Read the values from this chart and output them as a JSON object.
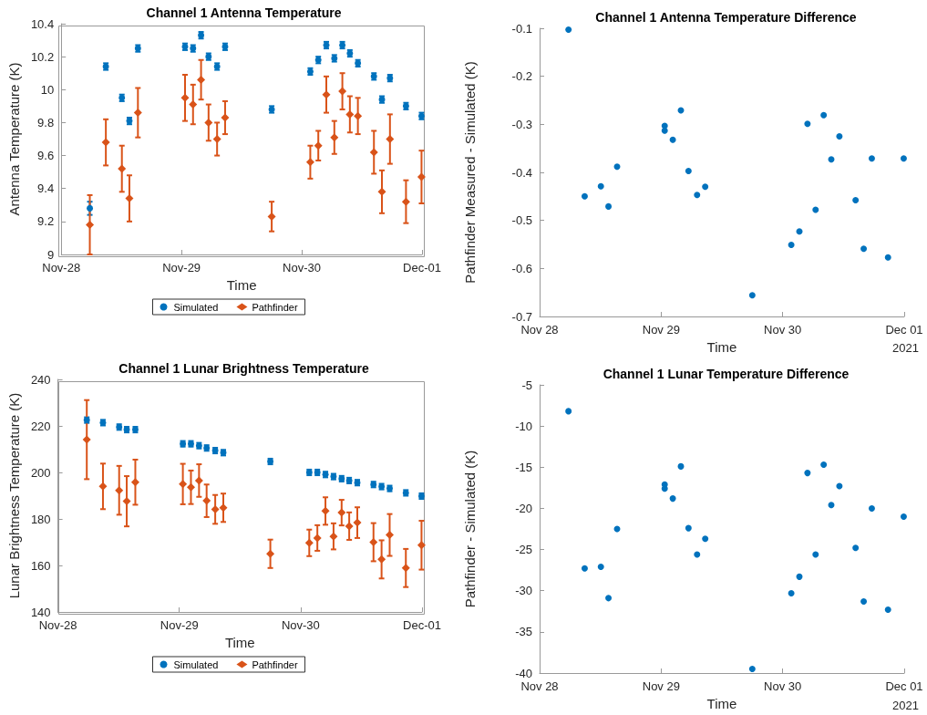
{
  "chart_data": [
    {
      "type": "scatter",
      "title": "Channel 1 Antenna Temperature",
      "xlabel": "Time",
      "ylabel": "Antenna Temperature (K)",
      "xlim": [
        "2021-11-28",
        "2021-12-01"
      ],
      "xticks": [
        {
          "value": "2021-11-28",
          "label": "Nov-28"
        },
        {
          "value": "2021-11-29",
          "label": "Nov-29"
        },
        {
          "value": "2021-11-30",
          "label": "Nov-30"
        },
        {
          "value": "2021-12-01",
          "label": "Dec-01"
        }
      ],
      "ylim": [
        9,
        10.4
      ],
      "yticks": [
        9,
        9.2,
        9.4,
        9.6,
        9.8,
        10,
        10.2,
        10.4
      ],
      "grid": false,
      "legend": "bottom",
      "x": [
        "2021-11-28T05:42",
        "2021-11-28T08:54",
        "2021-11-28T12:06",
        "2021-11-28T13:36",
        "2021-11-28T15:18",
        "2021-11-29T00:42",
        "2021-11-29T02:18",
        "2021-11-29T03:54",
        "2021-11-29T05:24",
        "2021-11-29T07:06",
        "2021-11-29T08:42",
        "2021-11-29T18:00",
        "2021-11-30T01:42",
        "2021-11-30T03:18",
        "2021-11-30T04:54",
        "2021-11-30T06:30",
        "2021-11-30T08:06",
        "2021-11-30T09:36",
        "2021-11-30T11:12",
        "2021-11-30T14:24",
        "2021-11-30T16:00",
        "2021-11-30T17:36",
        "2021-11-30T20:48",
        "2021-11-30T23:54"
      ],
      "series": [
        {
          "name": "Simulated",
          "color": "#0072bd",
          "marker": "circle",
          "values": [
            9.28,
            10.14,
            9.95,
            9.81,
            10.25,
            10.26,
            10.25,
            10.33,
            10.2,
            10.14,
            10.26,
            9.88,
            10.11,
            10.18,
            10.27,
            10.19,
            10.27,
            10.22,
            10.16,
            10.08,
            9.94,
            10.07,
            9.9,
            9.84
          ],
          "errors": [
            0.04,
            0.02,
            0.02,
            0.02,
            0.02,
            0.02,
            0.02,
            0.02,
            0.02,
            0.02,
            0.02,
            0.02,
            0.02,
            0.02,
            0.02,
            0.02,
            0.02,
            0.02,
            0.02,
            0.02,
            0.02,
            0.02,
            0.02,
            0.02
          ]
        },
        {
          "name": "Pathfinder",
          "color": "#d95319",
          "marker": "diamond",
          "values": [
            9.18,
            9.68,
            9.52,
            9.34,
            9.86,
            9.95,
            9.91,
            10.06,
            9.8,
            9.7,
            9.83,
            9.23,
            9.56,
            9.66,
            9.97,
            9.71,
            9.99,
            9.85,
            9.84,
            9.62,
            9.38,
            9.7,
            9.32,
            9.47
          ],
          "errors": [
            0.18,
            0.14,
            0.14,
            0.14,
            0.15,
            0.14,
            0.12,
            0.12,
            0.11,
            0.1,
            0.1,
            0.09,
            0.1,
            0.09,
            0.11,
            0.1,
            0.11,
            0.11,
            0.11,
            0.13,
            0.13,
            0.15,
            0.13,
            0.16
          ]
        }
      ]
    },
    {
      "type": "scatter",
      "title": "Channel 1 Antenna Temperature Difference",
      "xlabel": "Time",
      "ylabel": "Pathfinder Measured - Simulated (K)",
      "annotations": [
        "2021"
      ],
      "xlim": [
        "2021-11-28",
        "2021-12-01"
      ],
      "xticks": [
        {
          "value": "2021-11-28",
          "label": "Nov 28"
        },
        {
          "value": "2021-11-29",
          "label": "Nov 29"
        },
        {
          "value": "2021-11-30",
          "label": "Nov 30"
        },
        {
          "value": "2021-12-01",
          "label": "Dec 01"
        }
      ],
      "ylim": [
        -0.7,
        -0.1
      ],
      "yticks": [
        -0.7,
        -0.6,
        -0.5,
        -0.4,
        -0.3,
        -0.2,
        -0.1
      ],
      "grid": false,
      "legend": false,
      "series": [
        {
          "color": "#0072bd",
          "marker": "circle",
          "x": [
            "2021-11-28T05:42",
            "2021-11-28T08:54",
            "2021-11-28T12:06",
            "2021-11-28T13:36",
            "2021-11-28T15:18",
            "2021-11-29T00:42",
            "2021-11-29T00:42",
            "2021-11-29T02:18",
            "2021-11-29T03:54",
            "2021-11-29T05:24",
            "2021-11-29T07:06",
            "2021-11-29T08:42",
            "2021-11-29T18:00",
            "2021-11-30T01:42",
            "2021-11-30T03:18",
            "2021-11-30T04:54",
            "2021-11-30T06:30",
            "2021-11-30T08:06",
            "2021-11-30T09:36",
            "2021-11-30T11:12",
            "2021-11-30T14:24",
            "2021-11-30T16:00",
            "2021-11-30T17:36",
            "2021-11-30T20:48",
            "2021-11-30T23:54"
          ],
          "values": [
            -0.103,
            -0.45,
            -0.429,
            -0.471,
            -0.388,
            -0.303,
            -0.313,
            -0.332,
            -0.271,
            -0.397,
            -0.447,
            -0.43,
            -0.656,
            -0.551,
            -0.523,
            -0.299,
            -0.478,
            -0.281,
            -0.373,
            -0.325,
            -0.458,
            -0.559,
            -0.371,
            -0.577,
            -0.371
          ]
        }
      ]
    },
    {
      "type": "scatter",
      "title": "Channel 1 Lunar Brightness Temperature",
      "xlabel": "Time",
      "ylabel": "Lunar Brightness Temperature (K)",
      "xlim": [
        "2021-11-28",
        "2021-12-01"
      ],
      "xticks": [
        {
          "value": "2021-11-28",
          "label": "Nov-28"
        },
        {
          "value": "2021-11-29",
          "label": "Nov-29"
        },
        {
          "value": "2021-11-30",
          "label": "Nov-30"
        },
        {
          "value": "2021-12-01",
          "label": "Dec-01"
        }
      ],
      "ylim": [
        140,
        240
      ],
      "yticks": [
        140,
        160,
        180,
        200,
        220,
        240
      ],
      "grid": false,
      "legend": "bottom",
      "x": [
        "2021-11-28T05:42",
        "2021-11-28T08:54",
        "2021-11-28T12:06",
        "2021-11-28T13:36",
        "2021-11-28T15:18",
        "2021-11-29T00:42",
        "2021-11-29T02:18",
        "2021-11-29T03:54",
        "2021-11-29T05:24",
        "2021-11-29T07:06",
        "2021-11-29T08:42",
        "2021-11-29T18:00",
        "2021-11-30T01:42",
        "2021-11-30T03:18",
        "2021-11-30T04:54",
        "2021-11-30T06:30",
        "2021-11-30T08:06",
        "2021-11-30T09:36",
        "2021-11-30T11:12",
        "2021-11-30T14:24",
        "2021-11-30T16:00",
        "2021-11-30T17:36",
        "2021-11-30T20:48",
        "2021-11-30T23:54"
      ],
      "series": [
        {
          "name": "Simulated",
          "color": "#0072bd",
          "marker": "circle",
          "values": [
            222.5,
            221.4,
            219.5,
            218.4,
            218.4,
            212.3,
            212.3,
            211.5,
            210.5,
            209.4,
            208.5,
            204.7,
            200.0,
            200.0,
            199.1,
            198.2,
            197.3,
            196.5,
            195.6,
            194.8,
            193.9,
            193.1,
            191.2,
            189.8
          ],
          "errors": [
            1.2,
            1.2,
            1.2,
            1.2,
            1.2,
            1.2,
            1.2,
            1.2,
            1.2,
            1.2,
            1.2,
            1.2,
            1.2,
            1.2,
            1.2,
            1.2,
            1.2,
            1.2,
            1.2,
            1.2,
            1.2,
            1.2,
            1.2,
            1.2
          ]
        },
        {
          "name": "Pathfinder",
          "color": "#d95319",
          "marker": "diamond",
          "values": [
            214.1,
            194.0,
            192.3,
            187.6,
            195.8,
            195.0,
            193.6,
            196.5,
            187.8,
            184.1,
            184.8,
            165.0,
            169.7,
            171.8,
            183.4,
            172.5,
            182.7,
            176.9,
            178.4,
            170.0,
            162.6,
            173.1,
            158.9,
            168.7
          ],
          "errors": [
            17,
            9.8,
            10.5,
            10.8,
            9.7,
            8.7,
            7.2,
            7.0,
            7.0,
            6.2,
            6.1,
            6.1,
            5.7,
            5.5,
            5.9,
            5.6,
            5.5,
            5.9,
            6.6,
            8.2,
            8.2,
            9.0,
            8.2,
            10.5
          ]
        }
      ]
    },
    {
      "type": "scatter",
      "title": "Channel 1 Lunar Temperature Difference",
      "xlabel": "Time",
      "ylabel": "Pathfinder - Simulated (K)",
      "annotations": [
        "2021"
      ],
      "xlim": [
        "2021-11-28",
        "2021-12-01"
      ],
      "xticks": [
        {
          "value": "2021-11-28",
          "label": "Nov 28"
        },
        {
          "value": "2021-11-29",
          "label": "Nov 29"
        },
        {
          "value": "2021-11-30",
          "label": "Nov 30"
        },
        {
          "value": "2021-12-01",
          "label": "Dec 01"
        }
      ],
      "ylim": [
        -40,
        -5
      ],
      "yticks": [
        -40,
        -35,
        -30,
        -25,
        -20,
        -15,
        -10,
        -5
      ],
      "grid": false,
      "legend": false,
      "series": [
        {
          "color": "#0072bd",
          "marker": "circle",
          "x": [
            "2021-11-28T05:42",
            "2021-11-28T08:54",
            "2021-11-28T12:06",
            "2021-11-28T13:36",
            "2021-11-28T15:18",
            "2021-11-29T00:42",
            "2021-11-29T00:42",
            "2021-11-29T02:18",
            "2021-11-29T03:54",
            "2021-11-29T05:24",
            "2021-11-29T07:06",
            "2021-11-29T08:42",
            "2021-11-29T18:00",
            "2021-11-30T01:42",
            "2021-11-30T03:18",
            "2021-11-30T04:54",
            "2021-11-30T06:30",
            "2021-11-30T08:06",
            "2021-11-30T09:36",
            "2021-11-30T11:12",
            "2021-11-30T14:24",
            "2021-11-30T16:00",
            "2021-11-30T17:36",
            "2021-11-30T20:48",
            "2021-11-30T23:54"
          ],
          "values": [
            -8.2,
            -27.3,
            -27.1,
            -30.9,
            -22.5,
            -17.1,
            -17.6,
            -18.8,
            -14.9,
            -22.4,
            -25.6,
            -23.7,
            -39.5,
            -30.3,
            -28.3,
            -15.7,
            -25.6,
            -14.7,
            -19.6,
            -17.3,
            -24.8,
            -31.3,
            -20.0,
            -32.3,
            -21.0
          ]
        }
      ]
    }
  ]
}
